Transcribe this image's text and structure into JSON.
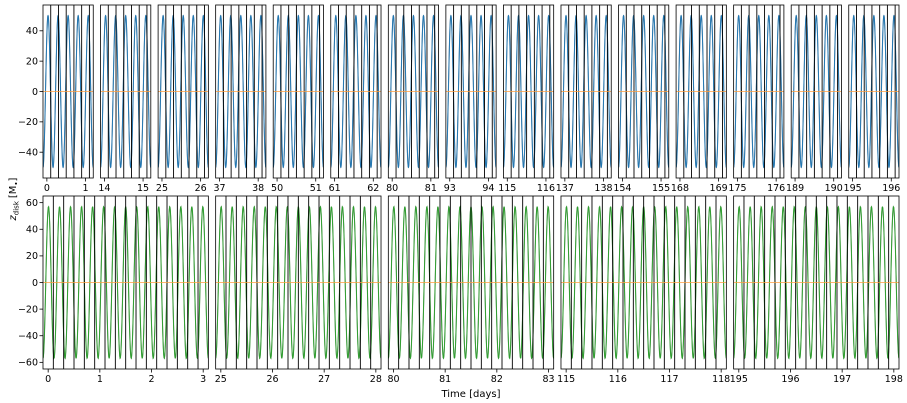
{
  "figure": {
    "ylabel": "z_disk [M•]",
    "ylabel_main": "z",
    "ylabel_sub": "disk",
    "ylabel_unit": "[M",
    "ylabel_unit_sub": "•",
    "ylabel_unit_close": "]",
    "xlabel": "Time [days]"
  },
  "colors": {
    "top_series": "#1f77b4",
    "top_core": "#0b2f4f",
    "bottom_series": "#2ca02c",
    "bottom_core": "#0f4010",
    "reference_line": "#ff9f40",
    "vertical_markers": "#000000"
  },
  "chart_data": [
    {
      "type": "line",
      "row": "top",
      "ylabel": "z_disk [M•]",
      "ylim": [
        -57,
        57
      ],
      "yticks": [
        -40,
        -20,
        0,
        20,
        40
      ],
      "reference_y": 0,
      "amplitude": 50,
      "cycles_per_panel": 5,
      "series_color": "#1f77b4",
      "panels": [
        {
          "xlim": [
            -0.1,
            1.2
          ],
          "xticks": [
            0,
            1
          ],
          "markers": [
            0.1,
            0.3,
            0.5,
            0.7,
            0.9,
            1.1
          ]
        },
        {
          "xlim": [
            13.9,
            15.2
          ],
          "xticks": [
            14,
            15
          ],
          "markers": [
            14.1,
            14.3,
            14.5,
            14.7,
            14.9,
            15.1
          ]
        },
        {
          "xlim": [
            24.9,
            26.2
          ],
          "xticks": [
            25,
            26
          ],
          "markers": [
            25.1,
            25.3,
            25.5,
            25.7,
            25.9,
            26.1
          ]
        },
        {
          "xlim": [
            36.9,
            38.2
          ],
          "xticks": [
            37,
            38
          ],
          "markers": [
            37.1,
            37.3,
            37.5,
            37.7,
            37.9,
            38.1
          ]
        },
        {
          "xlim": [
            49.9,
            51.2
          ],
          "xticks": [
            50,
            51
          ],
          "markers": [
            50.1,
            50.3,
            50.5,
            50.7,
            50.9,
            51.1
          ]
        },
        {
          "xlim": [
            60.9,
            62.2
          ],
          "xticks": [
            61,
            62
          ],
          "markers": [
            61.1,
            61.3,
            61.5,
            61.7,
            61.9,
            62.1
          ]
        },
        {
          "xlim": [
            79.9,
            81.2
          ],
          "xticks": [
            80,
            81
          ],
          "markers": [
            80.1,
            80.3,
            80.5,
            80.7,
            80.9,
            81.1
          ]
        },
        {
          "xlim": [
            92.9,
            94.2
          ],
          "xticks": [
            93,
            94
          ],
          "markers": [
            93.1,
            93.3,
            93.5,
            93.7,
            93.9,
            94.1
          ]
        },
        {
          "xlim": [
            114.9,
            116.2
          ],
          "xticks": [
            115,
            116
          ],
          "markers": [
            115.1,
            115.3,
            115.5,
            115.7,
            115.9,
            116.1
          ]
        },
        {
          "xlim": [
            136.9,
            138.2
          ],
          "xticks": [
            137,
            138
          ],
          "markers": [
            137.1,
            137.3,
            137.5,
            137.7,
            137.9,
            138.1
          ]
        },
        {
          "xlim": [
            153.9,
            155.2
          ],
          "xticks": [
            154,
            155
          ],
          "markers": [
            154.1,
            154.3,
            154.5,
            154.7,
            154.9,
            155.1
          ]
        },
        {
          "xlim": [
            167.9,
            169.2
          ],
          "xticks": [
            168,
            169
          ],
          "markers": [
            168.1,
            168.3,
            168.5,
            168.7,
            168.9,
            169.1
          ]
        },
        {
          "xlim": [
            174.9,
            176.2
          ],
          "xticks": [
            175,
            176
          ],
          "markers": [
            175.1,
            175.3,
            175.5,
            175.7,
            175.9,
            176.1
          ]
        },
        {
          "xlim": [
            188.9,
            190.2
          ],
          "xticks": [
            189,
            190
          ],
          "markers": [
            189.1,
            189.3,
            189.5,
            189.7,
            189.9,
            190.1
          ]
        },
        {
          "xlim": [
            194.9,
            196.2
          ],
          "xticks": [
            195,
            196
          ],
          "markers": [
            195.1,
            195.3,
            195.5,
            195.7,
            195.9,
            196.1
          ]
        }
      ]
    },
    {
      "type": "line",
      "row": "bottom",
      "xlabel": "Time [days]",
      "ylim": [
        -65,
        65
      ],
      "yticks": [
        -60,
        -40,
        -20,
        0,
        20,
        40,
        60
      ],
      "reference_y": 0,
      "amplitude": 57,
      "cycles_per_panel": 15,
      "series_color": "#2ca02c",
      "panels": [
        {
          "xlim": [
            -0.1,
            3.1
          ],
          "xticks": [
            0,
            1,
            2,
            3
          ],
          "markers": [
            0.1,
            0.3,
            0.5,
            0.7,
            0.9,
            1.1,
            1.3,
            1.5,
            1.7,
            1.9,
            2.1,
            2.3,
            2.5,
            2.7,
            2.9
          ]
        },
        {
          "xlim": [
            24.9,
            28.1
          ],
          "xticks": [
            25,
            26,
            27,
            28
          ],
          "markers": [
            25.1,
            25.3,
            25.5,
            25.7,
            25.9,
            26.1,
            26.3,
            26.5,
            26.7,
            26.9,
            27.1,
            27.3,
            27.5,
            27.7,
            27.9
          ]
        },
        {
          "xlim": [
            79.9,
            83.1
          ],
          "xticks": [
            80,
            81,
            82,
            83
          ],
          "markers": [
            80.1,
            80.3,
            80.5,
            80.7,
            80.9,
            81.1,
            81.3,
            81.5,
            81.7,
            81.9,
            82.1,
            82.3,
            82.5,
            82.7,
            82.9
          ]
        },
        {
          "xlim": [
            114.9,
            118.1
          ],
          "xticks": [
            115,
            116,
            117,
            118
          ],
          "markers": [
            115.1,
            115.3,
            115.5,
            115.7,
            115.9,
            116.1,
            116.3,
            116.5,
            116.7,
            116.9,
            117.1,
            117.3,
            117.5,
            117.7,
            117.9
          ]
        },
        {
          "xlim": [
            194.9,
            198.1
          ],
          "xticks": [
            195,
            196,
            197,
            198
          ],
          "markers": [
            195.1,
            195.3,
            195.5,
            195.7,
            195.9,
            196.1,
            196.3,
            196.5,
            196.7,
            196.9,
            197.1,
            197.3,
            197.5,
            197.7,
            197.9
          ]
        }
      ]
    }
  ]
}
